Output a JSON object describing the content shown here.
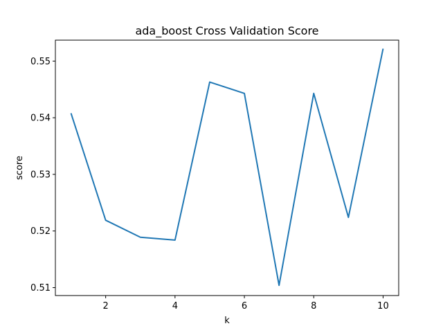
{
  "chart_data": {
    "type": "line",
    "title": "ada_boost Cross Validation Score",
    "xlabel": "k",
    "ylabel": "score",
    "xlim": [
      0.55,
      10.45
    ],
    "ylim": [
      0.5086,
      0.5537
    ],
    "xticks": [
      2,
      4,
      6,
      8,
      10
    ],
    "yticks": [
      0.51,
      0.52,
      0.53,
      0.54,
      0.55
    ],
    "xtick_labels": [
      "2",
      "4",
      "6",
      "8",
      "10"
    ],
    "ytick_labels": [
      "0.51",
      "0.52",
      "0.53",
      "0.54",
      "0.55"
    ],
    "grid": false,
    "series": [
      {
        "color": "#1f77b4",
        "x": [
          1,
          2,
          3,
          4,
          5,
          6,
          7,
          8,
          9,
          10
        ],
        "y": [
          0.5408,
          0.5219,
          0.5189,
          0.5184,
          0.5463,
          0.5443,
          0.5104,
          0.5443,
          0.5224,
          0.5522
        ]
      }
    ]
  }
}
